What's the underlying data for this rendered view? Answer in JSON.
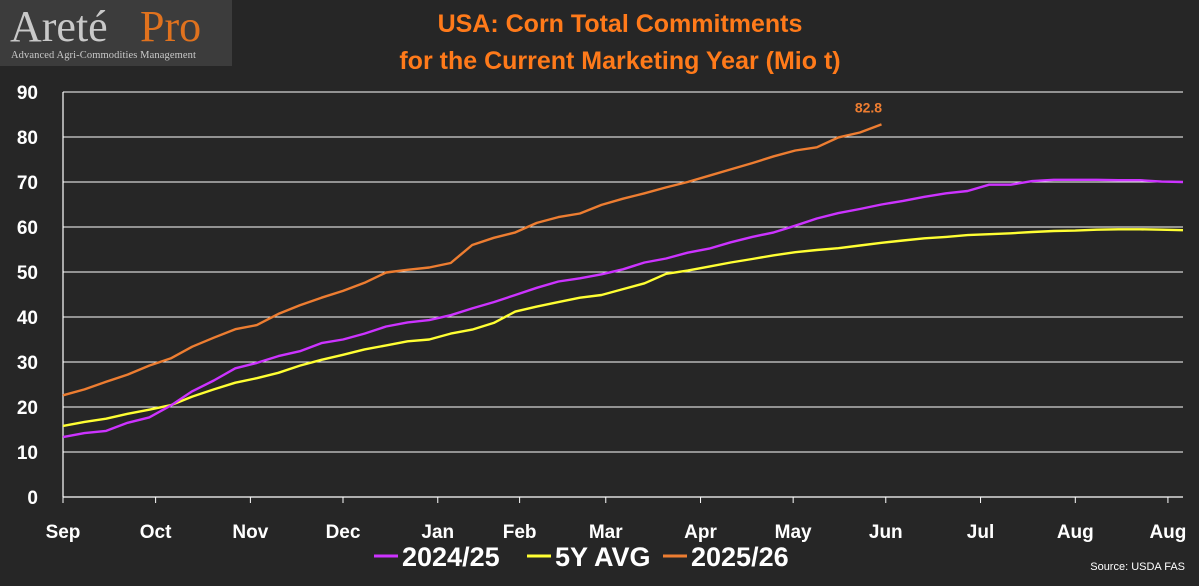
{
  "logo": {
    "word1": "Areté",
    "word2": "Pro",
    "tagline": "Advanced Agri-Commodities Management"
  },
  "title_line1": "USA: Corn Total Commitments",
  "title_line2": "for the Current Marketing Year (Mio t)",
  "source": "Source: USDA FAS",
  "colors": {
    "background": "#262626",
    "grid": "#ffffff",
    "title": "#ff7a1a",
    "series_2024_25": "#cc33ff",
    "series_5y_avg": "#ffff33",
    "series_2025_26": "#ed7d31"
  },
  "chart_data": {
    "type": "line",
    "title": "USA: Corn Total Commitments for the Current Marketing Year (Mio t)",
    "x_unit": "weeks since start of marketing year (Sep 1)",
    "x_range": [
      0,
      52
    ],
    "ylim": [
      0,
      90
    ],
    "y_ticks": [
      0,
      10,
      20,
      30,
      40,
      50,
      60,
      70,
      80,
      90
    ],
    "x_tick_labels": [
      "Sep",
      "Oct",
      "Nov",
      "Dec",
      "Jan",
      "Feb",
      "Mar",
      "Apr",
      "May",
      "Jun",
      "Jul",
      "Aug",
      "Aug"
    ],
    "x_tick_weeks": [
      0,
      4.3,
      8.7,
      13,
      17.4,
      21.2,
      25.2,
      29.6,
      33.9,
      38.2,
      42.6,
      47,
      51.3
    ],
    "grid": "horizontal",
    "legend_position": "bottom",
    "series": [
      {
        "name": "2024/25",
        "color": "#cc33ff",
        "values": [
          13.3,
          14.2,
          14.7,
          16.5,
          17.7,
          20.3,
          23.5,
          25.9,
          28.6,
          29.8,
          31.3,
          32.4,
          34.2,
          35.0,
          36.3,
          37.9,
          38.8,
          39.3,
          40.4,
          41.9,
          43.3,
          44.9,
          46.5,
          47.9,
          48.6,
          49.5,
          50.6,
          52.1,
          53.0,
          54.3,
          55.2,
          56.6,
          57.8,
          58.8,
          60.3,
          61.9,
          63.1,
          64.0,
          65.0,
          65.8,
          66.7,
          67.5,
          68.0,
          69.4,
          69.4,
          70.2,
          70.5,
          70.5,
          70.5,
          70.4,
          70.4,
          70.1,
          70.0
        ],
        "label": "2024/25"
      },
      {
        "name": "5Y AVG",
        "color": "#ffff33",
        "values": [
          15.8,
          16.7,
          17.4,
          18.5,
          19.4,
          20.4,
          22.3,
          23.9,
          25.4,
          26.4,
          27.6,
          29.2,
          30.5,
          31.6,
          32.8,
          33.7,
          34.6,
          35.0,
          36.3,
          37.2,
          38.7,
          41.2,
          42.3,
          43.3,
          44.3,
          44.9,
          46.2,
          47.5,
          49.6,
          50.3,
          51.2,
          52.1,
          52.9,
          53.7,
          54.4,
          54.9,
          55.3,
          55.9,
          56.5,
          57.0,
          57.5,
          57.8,
          58.2,
          58.4,
          58.6,
          58.9,
          59.1,
          59.2,
          59.4,
          59.5,
          59.5,
          59.4,
          59.3
        ],
        "label": "5Y AVG"
      },
      {
        "name": "2025/26",
        "color": "#ed7d31",
        "values": [
          22.6,
          23.9,
          25.6,
          27.2,
          29.2,
          30.8,
          33.4,
          35.4,
          37.3,
          38.2,
          40.7,
          42.6,
          44.3,
          45.8,
          47.6,
          49.9,
          50.5,
          51.0,
          52.0,
          56.0,
          57.6,
          58.8,
          60.9,
          62.2,
          63.0,
          64.9,
          66.3,
          67.5,
          68.8,
          70.0,
          71.4,
          72.8,
          74.2,
          75.7,
          77.0,
          77.7,
          79.9,
          81.0,
          82.8
        ],
        "label": "2025/26",
        "end_value_label": "82.8"
      }
    ]
  }
}
